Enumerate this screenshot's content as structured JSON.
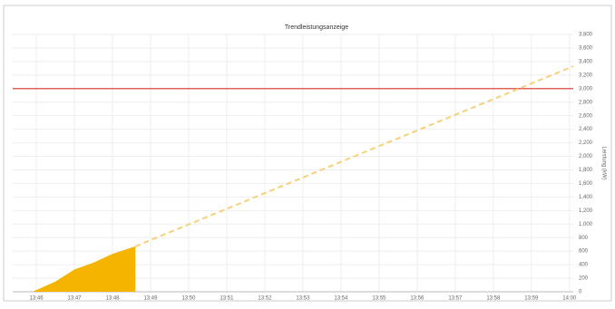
{
  "chart_data": {
    "type": "area",
    "title": "Trendleistungsanzeige",
    "y_label": "Leistung (kW)",
    "xlim": [
      45.38,
      60.1
    ],
    "xticks": [
      {
        "value": 46,
        "label": "13:46"
      },
      {
        "value": 47,
        "label": "13:47"
      },
      {
        "value": 48,
        "label": "13:48"
      },
      {
        "value": 49,
        "label": "13:49"
      },
      {
        "value": 50,
        "label": "13:50"
      },
      {
        "value": 51,
        "label": "13:51"
      },
      {
        "value": 52,
        "label": "13:52"
      },
      {
        "value": 53,
        "label": "13:53"
      },
      {
        "value": 54,
        "label": "13:54"
      },
      {
        "value": 55,
        "label": "13:55"
      },
      {
        "value": 56,
        "label": "13:56"
      },
      {
        "value": 57,
        "label": "13:57"
      },
      {
        "value": 58,
        "label": "13:58"
      },
      {
        "value": 59,
        "label": "13:59"
      },
      {
        "value": 60,
        "label": "14:00"
      }
    ],
    "ylim": [
      0,
      3800
    ],
    "yticks": [
      0,
      200,
      400,
      600,
      800,
      {
        "value": 1000,
        "label": "1,000"
      },
      {
        "value": 1200,
        "label": "1,200"
      },
      {
        "value": 1400,
        "label": "1,400"
      },
      {
        "value": 1600,
        "label": "1,600"
      },
      {
        "value": 1800,
        "label": "1,800"
      },
      {
        "value": 2000,
        "label": "2,000"
      },
      {
        "value": 2200,
        "label": "2,200"
      },
      {
        "value": 2400,
        "label": "2,400"
      },
      {
        "value": 2600,
        "label": "2,600"
      },
      {
        "value": 2800,
        "label": "2,800"
      },
      {
        "value": 3000,
        "label": "3,000"
      },
      {
        "value": 3200,
        "label": "3,200"
      },
      {
        "value": 3400,
        "label": "3,400"
      },
      {
        "value": 3600,
        "label": "3,600"
      },
      {
        "value": 3800,
        "label": "3,800"
      }
    ],
    "grid": true,
    "series": [
      {
        "color": "#f5b400",
        "x": [
          45.9,
          46.5,
          47,
          47.5,
          48,
          48.6
        ],
        "values": [
          0,
          150,
          330,
          430,
          560,
          670
        ]
      },
      {
        "color": "#f7d07a",
        "dashed": true,
        "x": [
          48.6,
          60.1
        ],
        "values": [
          670,
          3330
        ]
      }
    ],
    "threshold": {
      "value": 3000,
      "color": "#d9302c"
    }
  }
}
